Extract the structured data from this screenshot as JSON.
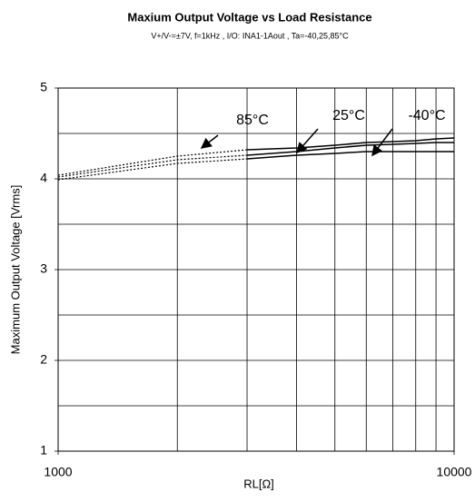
{
  "chart_data": {
    "type": "line",
    "title": "Maxium Output Voltage vs Load Resistance",
    "subtitle": "V+/V-=±7V, f=1kHz , I/O: INA1-1Aout , Ta=-40,25,85°C",
    "x_label": "RL[Ω]",
    "y_label": "Maximum Output Voltage [Vrms]",
    "x": [
      1000,
      2000,
      3000,
      4000,
      5000,
      6000,
      7000,
      8000,
      9000,
      10000
    ],
    "series": [
      {
        "name": "85°C",
        "color": "#000000",
        "values": [
          4.04,
          4.25,
          4.32,
          4.34,
          4.37,
          4.4,
          4.41,
          4.42,
          4.44,
          4.45
        ]
      },
      {
        "name": "25°C",
        "color": "#000000",
        "values": [
          4.02,
          4.21,
          4.26,
          4.3,
          4.34,
          4.37,
          4.38,
          4.39,
          4.4,
          4.4
        ]
      },
      {
        "name": "-40°C",
        "color": "#000000",
        "values": [
          3.99,
          4.17,
          4.22,
          4.26,
          4.28,
          4.3,
          4.3,
          4.3,
          4.3,
          4.3
        ]
      }
    ],
    "dotted_x_max": 2000,
    "xscale": "log",
    "xlim": [
      1000,
      10000
    ],
    "xticks": [
      1000,
      10000
    ],
    "x_minor_ticks": [
      2000,
      3000,
      4000,
      5000,
      6000,
      7000,
      8000,
      9000
    ],
    "ylim": [
      1,
      5
    ],
    "yticks": [
      1,
      2,
      3,
      4,
      5
    ],
    "y_minor_ticks": [
      1.5,
      2.5,
      3.5,
      4.5
    ],
    "grid": true
  }
}
